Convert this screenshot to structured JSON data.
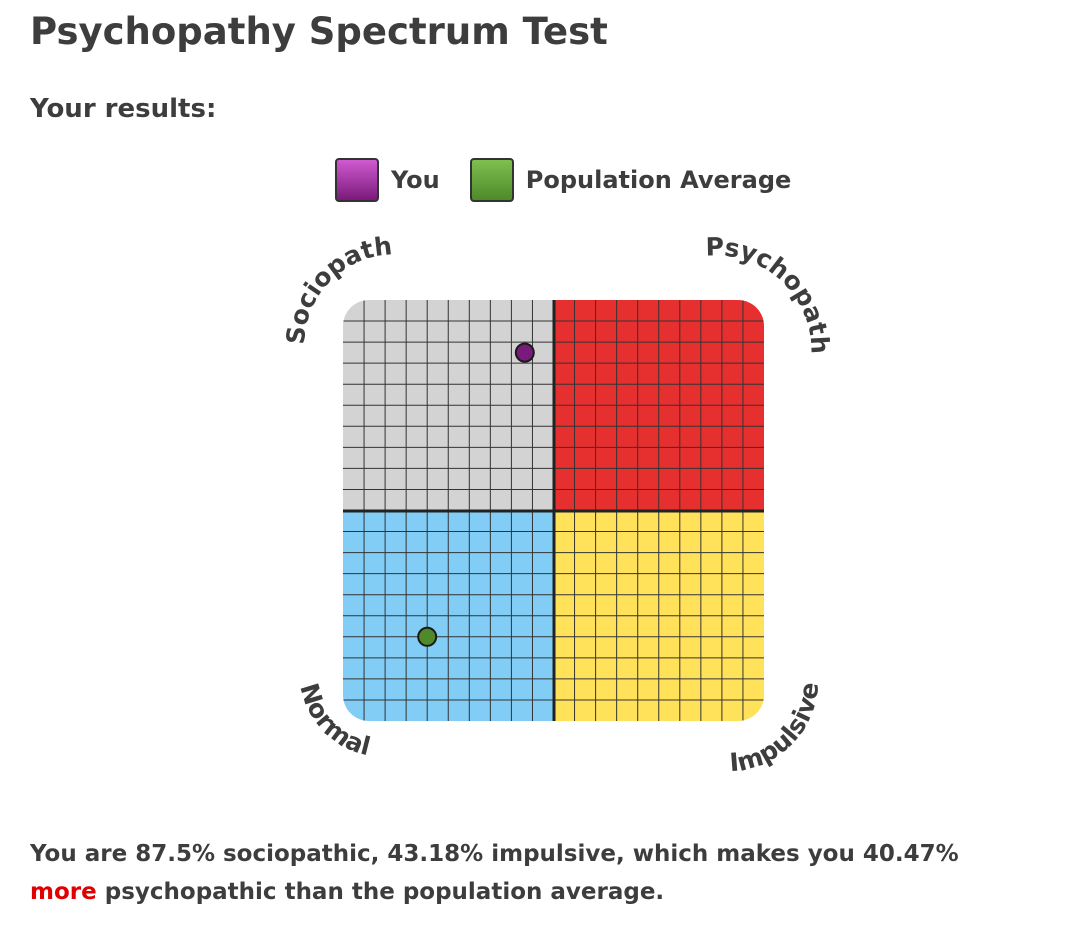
{
  "page": {
    "title": "Psychopathy Spectrum Test",
    "subtitle": "Your results:"
  },
  "legend": [
    {
      "label": "You",
      "color": "#7a1a7a"
    },
    {
      "label": "Population Average",
      "color": "#4e8a2a"
    }
  ],
  "chart_data": {
    "type": "scatter",
    "quadrants": {
      "top_left": {
        "label": "Sociopath",
        "color": "#d3d3d3"
      },
      "top_right": {
        "label": "Psychopath",
        "color": "#e6302f"
      },
      "bottom_left": {
        "label": "Normal",
        "color": "#82cdf5"
      },
      "bottom_right": {
        "label": "Impulsive",
        "color": "#ffe15a"
      }
    },
    "series": [
      {
        "name": "You",
        "x": 43.18,
        "y": 87.5,
        "color": "#7a1a7a"
      },
      {
        "name": "Population Average",
        "x": 20,
        "y": 20,
        "color": "#4e8a2a"
      }
    ],
    "xlim": [
      0,
      100
    ],
    "ylim": [
      0,
      100
    ],
    "grid": true
  },
  "summary": {
    "part1": "You are 87.5% sociopathic, 43.18% impulsive, which makes you 40.47%",
    "highlight": "more",
    "part2": "psychopathic than the population average."
  }
}
